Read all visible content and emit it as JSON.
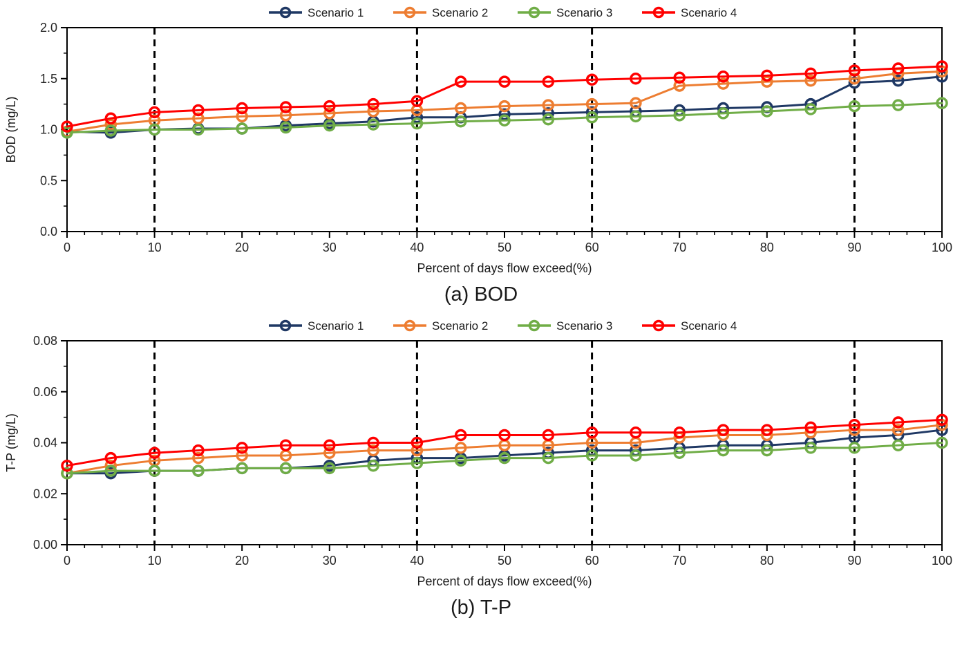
{
  "figure": {
    "background": "#ffffff",
    "axis_color": "#000000",
    "tick_label_color": "#262626",
    "dashed_guideline_color": "#000000"
  },
  "chart_data": [
    {
      "type": "line",
      "id": "bod",
      "caption": "(a) BOD",
      "xlabel": "Percent of days flow exceed(%)",
      "ylabel": "BOD (mg/L)",
      "xlim": [
        0,
        100
      ],
      "ylim": [
        0.0,
        2.0
      ],
      "ytick_step": 0.5,
      "ytick_minor_step": 0.25,
      "ytick_decimals": 1,
      "xtick_step": 10,
      "xtick_minor_step": 2,
      "grid": false,
      "legend_position": "top-center",
      "dashed_vlines": [
        10,
        40,
        60,
        90
      ],
      "x": [
        0,
        5,
        10,
        15,
        20,
        25,
        30,
        35,
        40,
        45,
        50,
        55,
        60,
        65,
        70,
        75,
        80,
        85,
        90,
        95,
        100
      ],
      "series": [
        {
          "name": "Scenario 1",
          "color": "#1f3864",
          "marker": "circle-open",
          "values": [
            0.98,
            0.97,
            1.0,
            1.01,
            1.01,
            1.04,
            1.06,
            1.08,
            1.12,
            1.12,
            1.15,
            1.16,
            1.17,
            1.18,
            1.19,
            1.21,
            1.22,
            1.25,
            1.46,
            1.48,
            1.52
          ]
        },
        {
          "name": "Scenario 2",
          "color": "#ed7d31",
          "marker": "circle-open",
          "values": [
            0.98,
            1.05,
            1.09,
            1.11,
            1.13,
            1.14,
            1.16,
            1.18,
            1.19,
            1.21,
            1.23,
            1.24,
            1.25,
            1.26,
            1.43,
            1.45,
            1.47,
            1.48,
            1.5,
            1.55,
            1.57
          ]
        },
        {
          "name": "Scenario 3",
          "color": "#70ad47",
          "marker": "circle-open",
          "values": [
            0.97,
            0.99,
            1.0,
            1.0,
            1.01,
            1.02,
            1.04,
            1.05,
            1.06,
            1.08,
            1.09,
            1.1,
            1.12,
            1.13,
            1.14,
            1.16,
            1.18,
            1.2,
            1.23,
            1.24,
            1.26
          ]
        },
        {
          "name": "Scenario 4",
          "color": "#ff0000",
          "marker": "circle-open",
          "values": [
            1.03,
            1.11,
            1.17,
            1.19,
            1.21,
            1.22,
            1.23,
            1.25,
            1.28,
            1.47,
            1.47,
            1.47,
            1.49,
            1.5,
            1.51,
            1.52,
            1.53,
            1.55,
            1.58,
            1.6,
            1.62
          ]
        }
      ]
    },
    {
      "type": "line",
      "id": "tp",
      "caption": "(b) T-P",
      "xlabel": "Percent of days flow exceed(%)",
      "ylabel": "T-P (mg/L)",
      "xlim": [
        0,
        100
      ],
      "ylim": [
        0.0,
        0.08
      ],
      "ytick_step": 0.02,
      "ytick_minor_step": 0.01,
      "ytick_decimals": 2,
      "xtick_step": 10,
      "xtick_minor_step": 2,
      "grid": false,
      "legend_position": "top-center",
      "dashed_vlines": [
        10,
        40,
        60,
        90
      ],
      "x": [
        0,
        5,
        10,
        15,
        20,
        25,
        30,
        35,
        40,
        45,
        50,
        55,
        60,
        65,
        70,
        75,
        80,
        85,
        90,
        95,
        100
      ],
      "series": [
        {
          "name": "Scenario 1",
          "color": "#1f3864",
          "marker": "circle-open",
          "values": [
            0.028,
            0.028,
            0.029,
            0.029,
            0.03,
            0.03,
            0.031,
            0.033,
            0.034,
            0.034,
            0.035,
            0.036,
            0.037,
            0.037,
            0.038,
            0.039,
            0.039,
            0.04,
            0.042,
            0.043,
            0.045
          ]
        },
        {
          "name": "Scenario 2",
          "color": "#ed7d31",
          "marker": "circle-open",
          "values": [
            0.028,
            0.031,
            0.033,
            0.034,
            0.035,
            0.035,
            0.036,
            0.037,
            0.037,
            0.038,
            0.039,
            0.039,
            0.04,
            0.04,
            0.042,
            0.043,
            0.043,
            0.044,
            0.045,
            0.045,
            0.047
          ]
        },
        {
          "name": "Scenario 3",
          "color": "#70ad47",
          "marker": "circle-open",
          "values": [
            0.028,
            0.029,
            0.029,
            0.029,
            0.03,
            0.03,
            0.03,
            0.031,
            0.032,
            0.033,
            0.034,
            0.034,
            0.035,
            0.035,
            0.036,
            0.037,
            0.037,
            0.038,
            0.038,
            0.039,
            0.04
          ]
        },
        {
          "name": "Scenario 4",
          "color": "#ff0000",
          "marker": "circle-open",
          "values": [
            0.031,
            0.034,
            0.036,
            0.037,
            0.038,
            0.039,
            0.039,
            0.04,
            0.04,
            0.043,
            0.043,
            0.043,
            0.044,
            0.044,
            0.044,
            0.045,
            0.045,
            0.046,
            0.047,
            0.048,
            0.049
          ]
        }
      ]
    }
  ]
}
